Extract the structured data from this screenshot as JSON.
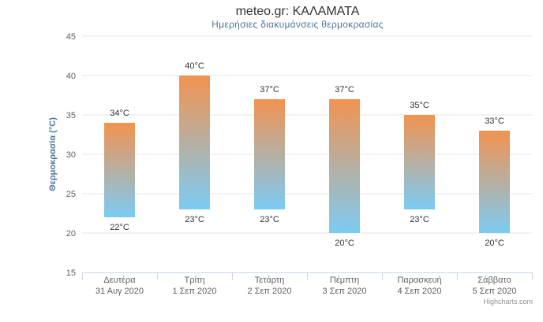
{
  "chart_data": {
    "type": "bar",
    "title": "meteo.gr: ΚΑΛΑΜΑΤΑ",
    "subtitle": "Ημερήσιες διακυμάνσεις θερμοκρασίας",
    "ylabel": "Θερμοκρασία (°C)",
    "ylim": [
      15,
      45
    ],
    "yticks": [
      "15",
      "20",
      "25",
      "30",
      "35",
      "40",
      "45"
    ],
    "categories": [
      [
        "Δευτέρα",
        "31 Αυγ 2020"
      ],
      [
        "Τρίτη",
        "1 Σεπ 2020"
      ],
      [
        "Τετάρτη",
        "2 Σεπ 2020"
      ],
      [
        "Πέμπτη",
        "3 Σεπ 2020"
      ],
      [
        "Παρασκευή",
        "4 Σεπ 2020"
      ],
      [
        "Σάββατο",
        "5 Σεπ 2020"
      ]
    ],
    "low": [
      22,
      23,
      23,
      20,
      23,
      20
    ],
    "high": [
      34,
      40,
      37,
      37,
      35,
      33
    ],
    "low_labels": [
      "22°C",
      "23°C",
      "23°C",
      "20°C",
      "23°C",
      "20°C"
    ],
    "high_labels": [
      "34°C",
      "40°C",
      "37°C",
      "37°C",
      "35°C",
      "33°C"
    ],
    "grid": true,
    "colors": {
      "top": "#f29350",
      "bottom": "#7ccbf3",
      "grid": "#e6e6e6",
      "axis": "#ccd6eb"
    },
    "credits": "Highcharts.com"
  }
}
